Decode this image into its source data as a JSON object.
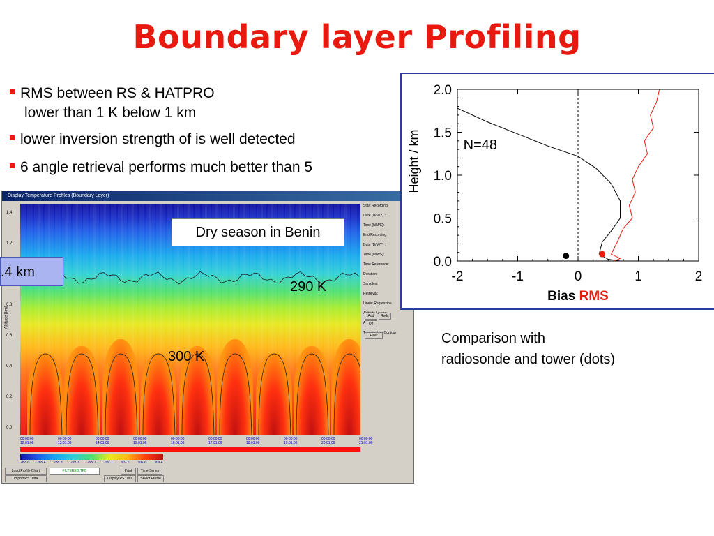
{
  "slide": {
    "title": "Boundary layer Profiling",
    "bullets": [
      "RMS between RS & HATPRO",
      "lower than 1 K below 1 km",
      "lower inversion strength of is well detected",
      "6 angle retrieval performs much better than 5"
    ],
    "comment_line1": "Comparison with",
    "comment_line2": "radiosonde and tower (dots)"
  },
  "window": {
    "title": "Display Temperature Profiles (Boundary Layer)",
    "y_ticks": [
      "1.4",
      "1.2",
      "1.0",
      "0.8",
      "0.6",
      "0.4",
      "0.2",
      "0.0"
    ],
    "y_axis_label": "Altitude [km]",
    "side_panel": [
      "Start Recording:",
      "Date (D/M/Y) :",
      "Time (h/M/S):",
      "End Recording:",
      "Date (D/M/Y) :",
      "Time (h/M/S):",
      "Time Reference:",
      "Duration:",
      "Samples:",
      "Retrieval:",
      "Linear Regression",
      "Altitude Layers:",
      "Altitude:",
      "Temperature Contour"
    ],
    "time_labels": [
      "00:00:00\n12:01:06",
      "00:00:00\n13:01:06",
      "00:00:00\n14:01:06",
      "00:00:00\n15:01:06",
      "00:00:00\n16:01:06",
      "00:00:00\n17:01:06",
      "00:00:00\n18:01:06",
      "00:00:00\n19:01:06",
      "00:00:00\n20:01:06",
      "00:00:00\n21:01:06"
    ],
    "colorbar_values": [
      "282.0",
      "285.4",
      "288.8",
      "292.3",
      "295.7",
      "299.1",
      "302.6",
      "306.0",
      "309.4"
    ],
    "buttons": [
      "Load Profile Chart",
      "Import RS Data",
      "Print",
      "Display RS Data",
      "Time Series",
      "Select Profile",
      "Add",
      "Redr.",
      "Off",
      "Filter"
    ],
    "file_name": "FILTERED.TPB",
    "annotations": {
      "dry_season": "Dry season in Benin",
      "km": ".4 km",
      "k290": "290 K",
      "k300": "300 K"
    }
  },
  "chart_data": {
    "type": "line",
    "title": "",
    "xlabel": "Bias RMS",
    "xlabel_parts": [
      "Bias",
      "RMS"
    ],
    "ylabel": "Height / km",
    "xlim": [
      -2,
      2
    ],
    "ylim": [
      0,
      2
    ],
    "x_ticks": [
      "-2",
      "-1",
      "0",
      "1",
      "2"
    ],
    "y_ticks": [
      "0.0",
      "0.5",
      "1.0",
      "1.5",
      "2.0"
    ],
    "annotation": "N=48",
    "series": [
      {
        "name": "Bias",
        "color": "#000000",
        "points": [
          [
            -2.0,
            1.78
          ],
          [
            -1.5,
            1.62
          ],
          [
            -1.0,
            1.48
          ],
          [
            -0.5,
            1.34
          ],
          [
            0.0,
            1.22
          ],
          [
            0.3,
            1.08
          ],
          [
            0.55,
            0.9
          ],
          [
            0.7,
            0.7
          ],
          [
            0.7,
            0.5
          ],
          [
            0.55,
            0.35
          ],
          [
            0.4,
            0.22
          ],
          [
            0.35,
            0.08
          ],
          [
            0.5,
            0.02
          ],
          [
            0.7,
            0.0
          ]
        ]
      },
      {
        "name": "RMS",
        "color": "#e8190f",
        "points": [
          [
            1.35,
            2.0
          ],
          [
            1.3,
            1.85
          ],
          [
            1.2,
            1.7
          ],
          [
            1.25,
            1.55
          ],
          [
            1.1,
            1.4
          ],
          [
            1.15,
            1.25
          ],
          [
            1.0,
            1.1
          ],
          [
            0.9,
            0.95
          ],
          [
            0.95,
            0.8
          ],
          [
            0.85,
            0.65
          ],
          [
            0.9,
            0.5
          ],
          [
            0.75,
            0.38
          ],
          [
            0.65,
            0.22
          ],
          [
            0.55,
            0.08
          ],
          [
            0.7,
            0.03
          ],
          [
            0.6,
            0.0
          ]
        ]
      }
    ],
    "dots": [
      {
        "name": "Bias",
        "x": -0.2,
        "y": 0.06,
        "color": "#000000"
      },
      {
        "name": "RMS",
        "x": 0.4,
        "y": 0.08,
        "color": "#e8190f"
      }
    ]
  }
}
